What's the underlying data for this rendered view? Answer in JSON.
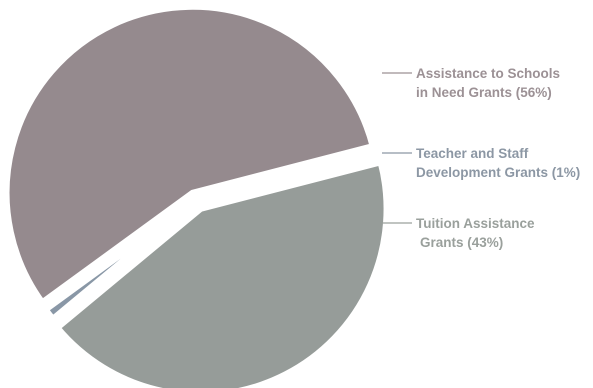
{
  "chart_data": {
    "type": "pie",
    "title": "",
    "slices": [
      {
        "label_lines": [
          "Assistance to Schools",
          "in Need Grants (56%)"
        ],
        "value": 56,
        "color": "#958a8e",
        "label_color": "#9c9195"
      },
      {
        "label_lines": [
          "Teacher and Staff",
          "Development Grants (1%)"
        ],
        "value": 1,
        "color": "#8997a6",
        "label_color": "#8c97a4"
      },
      {
        "label_lines": [
          "Tuition Assistance",
          "Grants (43%)"
        ],
        "value": 43,
        "color": "#969c99",
        "label_color": "#9aa09c"
      }
    ]
  }
}
